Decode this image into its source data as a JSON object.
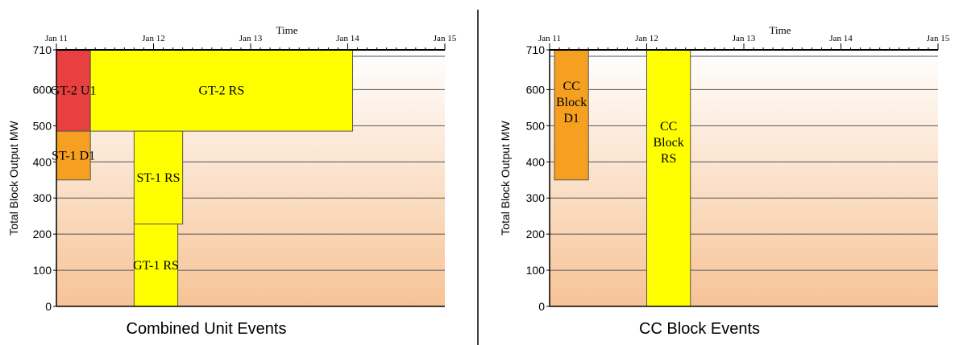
{
  "chart_data": [
    {
      "type": "bar",
      "caption": "Combined Unit Events",
      "title": "Time",
      "ylabel": "Total Block Output MW",
      "ylim": [
        0,
        710
      ],
      "yticks": [
        "0",
        "100",
        "200",
        "300",
        "400",
        "500",
        "600",
        "710"
      ],
      "xticks": [
        "Jan 11",
        "Jan 12",
        "Jan 13",
        "Jan 14",
        "Jan 15"
      ],
      "bars": [
        {
          "label": "GT-2 U1",
          "x0": 11.0,
          "x1": 11.35,
          "y0": 485,
          "y1": 710,
          "color": "#e84040"
        },
        {
          "label": "ST-1 D1",
          "x0": 11.0,
          "x1": 11.35,
          "y0": 350,
          "y1": 485,
          "color": "#f5a020"
        },
        {
          "label": "GT-2 RS",
          "x0": 11.35,
          "x1": 14.05,
          "y0": 485,
          "y1": 710,
          "color": "#ffff00"
        },
        {
          "label": "ST-1 RS",
          "x0": 11.8,
          "x1": 12.3,
          "y0": 228,
          "y1": 485,
          "color": "#ffff00"
        },
        {
          "label": "GT-1 RS",
          "x0": 11.8,
          "x1": 12.25,
          "y0": 0,
          "y1": 228,
          "color": "#ffff00"
        }
      ]
    },
    {
      "type": "bar",
      "caption": "CC Block Events",
      "title": "Time",
      "ylabel": "Total Block Output MW",
      "ylim": [
        0,
        710
      ],
      "yticks": [
        "0",
        "100",
        "200",
        "300",
        "400",
        "500",
        "600",
        "710"
      ],
      "xticks": [
        "Jan 11",
        "Jan 12",
        "Jan 13",
        "Jan 14",
        "Jan 15"
      ],
      "bars": [
        {
          "label": "CC Block D1",
          "x0": 11.05,
          "x1": 11.4,
          "y0": 350,
          "y1": 710,
          "color": "#f5a020"
        },
        {
          "label": "CC Block RS",
          "x0": 12.0,
          "x1": 12.45,
          "y0": 0,
          "y1": 710,
          "color": "#ffff00"
        }
      ]
    }
  ]
}
